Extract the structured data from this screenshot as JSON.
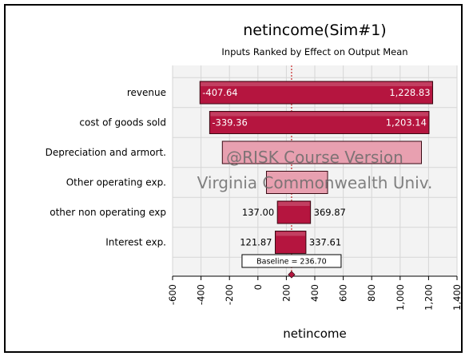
{
  "chart_data": {
    "type": "bar",
    "orientation": "horizontal",
    "title": "netincome(Sim#1)",
    "subtitle": "Inputs Ranked by Effect on Output  Mean",
    "xlabel": "netincome",
    "xlim": [
      -600,
      1400
    ],
    "xticks": [
      -600,
      -400,
      -200,
      0,
      200,
      400,
      600,
      800,
      1000,
      1200,
      1400
    ],
    "xtick_labels": [
      "-600",
      "-400",
      "-200",
      "0",
      "200",
      "400",
      "600",
      "800",
      "1,000",
      "1,200",
      "1,400"
    ],
    "baseline": 236.7,
    "baseline_label": "Baseline = 236.70",
    "categories": [
      "revenue",
      "cost of goods sold",
      "Depreciation and armort.",
      "Other operating exp.",
      "other non operating exp",
      "Interest exp."
    ],
    "low": [
      -407.64,
      -339.36,
      -250,
      60,
      137.0,
      121.87
    ],
    "high": [
      1228.83,
      1203.14,
      1150,
      490,
      369.87,
      337.61
    ],
    "low_labels": [
      "-407.64",
      "-339.36",
      "",
      "",
      "137.00",
      "121.87"
    ],
    "high_labels": [
      "1,228.83",
      "1,203.14",
      "",
      "",
      "369.87",
      "337.61"
    ],
    "label_inside": [
      true,
      true,
      false,
      false,
      false,
      false
    ],
    "grid": true,
    "colors": {
      "bar_fill": "#b5153f",
      "bar_fill_light": "#e8a0b0",
      "bar_stroke": "#3a0a14",
      "plot_bg": "#f3f3f3",
      "grid": "#d6d6d6",
      "baseline": "#c00000"
    }
  },
  "watermark": {
    "line1": "@RISK Course Version",
    "line2": "Virginia Commonwealth Univ."
  }
}
